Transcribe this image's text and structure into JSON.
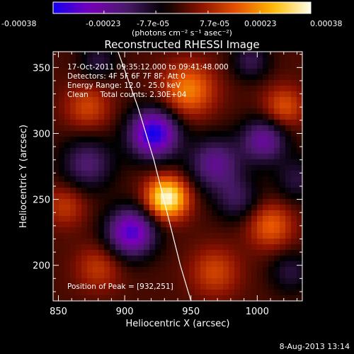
{
  "colorbar": {
    "tick_labels": [
      "-0.00038",
      "-0.00023",
      "-7.7e-05",
      "7.7e-05",
      "0.00023",
      "0.00038"
    ],
    "unit_label": "(photons cm⁻² s⁻¹ asec⁻²)",
    "range": [
      -0.00038,
      0.00038
    ],
    "colors": [
      "#1200f0",
      "#7a00b8",
      "#4a1a6a",
      "#000000",
      "#8a1200",
      "#e85300",
      "#ffbb00",
      "#ffffee"
    ]
  },
  "chart_data": {
    "type": "heatmap",
    "title": "Reconstructed RHESSI Image",
    "xlabel": "Heliocentric X (arcsec)",
    "ylabel": "Heliocentric Y (arcsec)",
    "xlim": [
      846,
      1034
    ],
    "ylim": [
      173,
      362
    ],
    "xticks": [
      850,
      900,
      950,
      1000
    ],
    "yticks": [
      200,
      250,
      300,
      350
    ],
    "xtick_labels": [
      "850",
      "900",
      "950",
      "1000"
    ],
    "ytick_labels": [
      "200",
      "250",
      "300",
      "350"
    ],
    "annotations": [
      "17-Oct-2011 09:35:12.000 to 09:41:48.000",
      "Detectors: 4F 5F 6F 7F 8F, Att 0",
      "Energy Range: 12.0 - 25.0 keV",
      "Clean     Total counts: 2.30E+04"
    ],
    "peak_label": "Position of Peak = [932,251]",
    "peak": [
      932,
      251
    ],
    "limb_curve": [
      [
        895,
        362
      ],
      [
        910,
        320
      ],
      [
        922,
        280
      ],
      [
        932,
        240
      ],
      [
        942,
        200
      ],
      [
        950,
        173
      ]
    ],
    "blobs": [
      {
        "x": 932,
        "y": 251,
        "amp": 1.0,
        "sigma": 11
      },
      {
        "x": 922,
        "y": 300,
        "amp": -1.0,
        "sigma": 13
      },
      {
        "x": 905,
        "y": 225,
        "amp": -0.85,
        "sigma": 13
      },
      {
        "x": 968,
        "y": 277,
        "amp": -0.55,
        "sigma": 14
      },
      {
        "x": 1005,
        "y": 295,
        "amp": -0.6,
        "sigma": 12
      },
      {
        "x": 872,
        "y": 277,
        "amp": -0.45,
        "sigma": 14
      },
      {
        "x": 948,
        "y": 333,
        "amp": 0.55,
        "sigma": 14
      },
      {
        "x": 1020,
        "y": 320,
        "amp": 0.4,
        "sigma": 11
      },
      {
        "x": 1010,
        "y": 230,
        "amp": 0.45,
        "sigma": 12
      },
      {
        "x": 968,
        "y": 195,
        "amp": 0.35,
        "sigma": 13
      },
      {
        "x": 872,
        "y": 320,
        "amp": 0.35,
        "sigma": 12
      },
      {
        "x": 855,
        "y": 245,
        "amp": 0.3,
        "sigma": 11
      },
      {
        "x": 985,
        "y": 250,
        "amp": -0.35,
        "sigma": 12
      },
      {
        "x": 880,
        "y": 198,
        "amp": 0.3,
        "sigma": 12
      },
      {
        "x": 1030,
        "y": 265,
        "amp": -0.3,
        "sigma": 12
      },
      {
        "x": 880,
        "y": 355,
        "amp": -0.3,
        "sigma": 10
      },
      {
        "x": 995,
        "y": 355,
        "amp": -0.35,
        "sigma": 10
      },
      {
        "x": 1025,
        "y": 195,
        "amp": -0.3,
        "sigma": 11
      }
    ]
  },
  "timestamp": "8-Aug-2013 13:14"
}
